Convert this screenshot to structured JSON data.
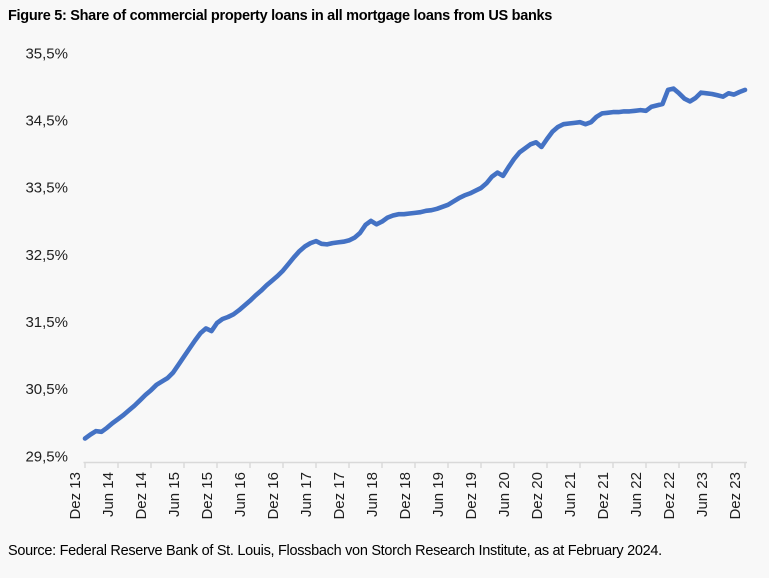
{
  "figure": {
    "title": "Figure 5: Share of commercial property loans in all mortgage loans from US banks",
    "source": "Source: Federal Reserve Bank of St. Louis, Flossbach von Storch Research Institute, as at February 2024."
  },
  "chart_data": {
    "type": "line",
    "title": "Figure 5: Share of commercial property loans in all mortgage loans from US banks",
    "xlabel": "",
    "ylabel": "",
    "ylim": [
      29.5,
      35.5
    ],
    "grid": false,
    "legend_position": "none",
    "line_color": "#4472C4",
    "axis_color": "#D9D9D9",
    "y_tick_values": [
      35.5,
      34.5,
      33.5,
      32.5,
      31.5,
      30.5,
      29.5
    ],
    "y_tick_labels": [
      "35,5%",
      "34,5%",
      "33,5%",
      "32,5%",
      "31,5%",
      "30,5%",
      "29,5%"
    ],
    "x_tick_labels": [
      "Dez 13",
      "Jun 14",
      "Dez 14",
      "Jun 15",
      "Dez 15",
      "Jun 16",
      "Dez 16",
      "Jun 17",
      "Dez 17",
      "Jun 18",
      "Dez 18",
      "Jun 19",
      "Dez 19",
      "Jun 20",
      "Dez 20",
      "Jun 21",
      "Dez 21",
      "Jun 22",
      "Dez 22",
      "Jun 23",
      "Dez 23"
    ],
    "x_tick_every_n_points": 6,
    "x": [
      "2013-12",
      "2014-01",
      "2014-02",
      "2014-03",
      "2014-04",
      "2014-05",
      "2014-06",
      "2014-07",
      "2014-08",
      "2014-09",
      "2014-10",
      "2014-11",
      "2014-12",
      "2015-01",
      "2015-02",
      "2015-03",
      "2015-04",
      "2015-05",
      "2015-06",
      "2015-07",
      "2015-08",
      "2015-09",
      "2015-10",
      "2015-11",
      "2015-12",
      "2016-01",
      "2016-02",
      "2016-03",
      "2016-04",
      "2016-05",
      "2016-06",
      "2016-07",
      "2016-08",
      "2016-09",
      "2016-10",
      "2016-11",
      "2016-12",
      "2017-01",
      "2017-02",
      "2017-03",
      "2017-04",
      "2017-05",
      "2017-06",
      "2017-07",
      "2017-08",
      "2017-09",
      "2017-10",
      "2017-11",
      "2017-12",
      "2018-01",
      "2018-02",
      "2018-03",
      "2018-04",
      "2018-05",
      "2018-06",
      "2018-07",
      "2018-08",
      "2018-09",
      "2018-10",
      "2018-11",
      "2018-12",
      "2019-01",
      "2019-02",
      "2019-03",
      "2019-04",
      "2019-05",
      "2019-06",
      "2019-07",
      "2019-08",
      "2019-09",
      "2019-10",
      "2019-11",
      "2019-12",
      "2020-01",
      "2020-02",
      "2020-03",
      "2020-04",
      "2020-05",
      "2020-06",
      "2020-07",
      "2020-08",
      "2020-09",
      "2020-10",
      "2020-11",
      "2020-12",
      "2021-01",
      "2021-02",
      "2021-03",
      "2021-04",
      "2021-05",
      "2021-06",
      "2021-07",
      "2021-08",
      "2021-09",
      "2021-10",
      "2021-11",
      "2021-12",
      "2022-01",
      "2022-02",
      "2022-03",
      "2022-04",
      "2022-05",
      "2022-06",
      "2022-07",
      "2022-08",
      "2022-09",
      "2022-10",
      "2022-11",
      "2022-12",
      "2023-01",
      "2023-02",
      "2023-03",
      "2023-04",
      "2023-05",
      "2023-06",
      "2023-07",
      "2023-08",
      "2023-09",
      "2023-10",
      "2023-11",
      "2023-12"
    ],
    "series": [
      {
        "name": "Share of commercial property loans in all mortgage loans from US banks",
        "values": [
          29.76,
          29.82,
          29.87,
          29.86,
          29.92,
          29.99,
          30.05,
          30.11,
          30.18,
          30.25,
          30.33,
          30.41,
          30.48,
          30.56,
          30.61,
          30.66,
          30.74,
          30.86,
          30.98,
          31.1,
          31.22,
          31.33,
          31.4,
          31.36,
          31.48,
          31.54,
          31.57,
          31.61,
          31.67,
          31.74,
          31.81,
          31.89,
          31.96,
          32.04,
          32.11,
          32.18,
          32.26,
          32.36,
          32.46,
          32.55,
          32.62,
          32.67,
          32.7,
          32.66,
          32.65,
          32.67,
          32.68,
          32.69,
          32.71,
          32.75,
          32.82,
          32.94,
          33.0,
          32.95,
          32.99,
          33.05,
          33.08,
          33.1,
          33.1,
          33.11,
          33.12,
          33.13,
          33.15,
          33.16,
          33.18,
          33.21,
          33.24,
          33.29,
          33.34,
          33.38,
          33.41,
          33.45,
          33.49,
          33.56,
          33.66,
          33.72,
          33.67,
          33.8,
          33.92,
          34.02,
          34.08,
          34.14,
          34.17,
          34.1,
          34.22,
          34.33,
          34.4,
          34.44,
          34.45,
          34.46,
          34.47,
          34.44,
          34.47,
          34.55,
          34.6,
          34.61,
          34.62,
          34.62,
          34.63,
          34.63,
          34.64,
          34.65,
          34.64,
          34.7,
          34.72,
          34.74,
          34.95,
          34.97,
          34.9,
          34.82,
          34.78,
          34.83,
          34.91,
          34.9,
          34.89,
          34.87,
          34.85,
          34.9,
          34.88,
          34.92,
          34.95
        ]
      }
    ]
  }
}
